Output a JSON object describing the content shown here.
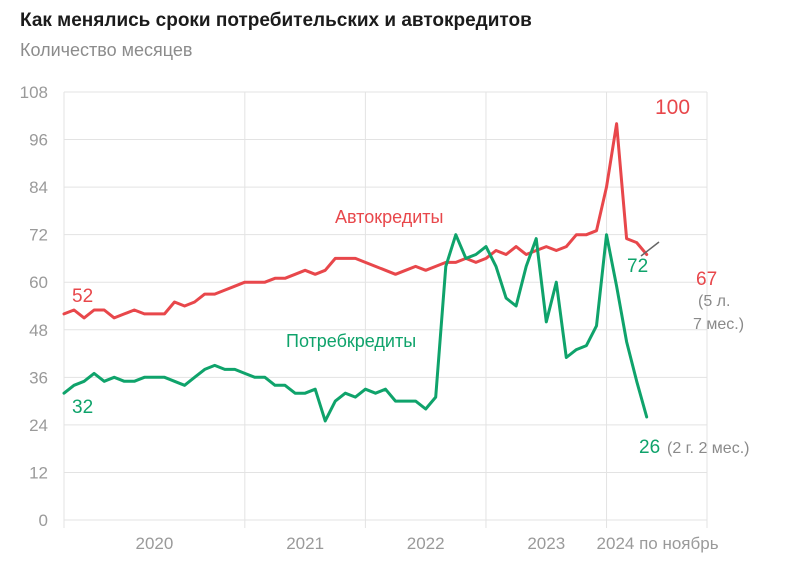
{
  "title": "Как менялись сроки потребительских и автокредитов",
  "subtitle": "Количество месяцев",
  "colors": {
    "auto": "#e8474b",
    "consumer": "#0fa36b",
    "grid": "#e3e3e3",
    "axis_text": "#9a9a9a",
    "note": "#8a8a8a"
  },
  "chart_data": {
    "type": "line",
    "title": "Как менялись сроки потребительских и автокредитов",
    "subtitle": "Количество месяцев",
    "ylim": [
      0,
      108
    ],
    "yticks": [
      0,
      12,
      24,
      36,
      48,
      60,
      72,
      84,
      96,
      108
    ],
    "x_start": "2019-07",
    "x_end": "2024-11",
    "year_ticks": [
      {
        "label": "2020",
        "start": "2020-01"
      },
      {
        "label": "2021",
        "start": "2021-01"
      },
      {
        "label": "2022",
        "start": "2022-01"
      },
      {
        "label": "2023",
        "start": "2023-01"
      },
      {
        "label": "2024 по ноябрь",
        "start": "2024-01"
      }
    ],
    "grid": true,
    "series": [
      {
        "name": "Автокредиты",
        "color": "#e8474b",
        "points": [
          [
            "2019-07",
            52
          ],
          [
            "2019-08",
            53
          ],
          [
            "2019-09",
            51
          ],
          [
            "2019-10",
            53
          ],
          [
            "2019-11",
            53
          ],
          [
            "2019-12",
            51
          ],
          [
            "2020-01",
            52
          ],
          [
            "2020-02",
            53
          ],
          [
            "2020-03",
            52
          ],
          [
            "2020-04",
            52
          ],
          [
            "2020-05",
            52
          ],
          [
            "2020-06",
            55
          ],
          [
            "2020-07",
            54
          ],
          [
            "2020-08",
            55
          ],
          [
            "2020-09",
            57
          ],
          [
            "2020-10",
            57
          ],
          [
            "2020-11",
            58
          ],
          [
            "2020-12",
            59
          ],
          [
            "2021-01",
            60
          ],
          [
            "2021-02",
            60
          ],
          [
            "2021-03",
            60
          ],
          [
            "2021-04",
            61
          ],
          [
            "2021-05",
            61
          ],
          [
            "2021-06",
            62
          ],
          [
            "2021-07",
            63
          ],
          [
            "2021-08",
            62
          ],
          [
            "2021-09",
            63
          ],
          [
            "2021-10",
            66
          ],
          [
            "2021-11",
            66
          ],
          [
            "2021-12",
            66
          ],
          [
            "2022-01",
            65
          ],
          [
            "2022-02",
            64
          ],
          [
            "2022-03",
            63
          ],
          [
            "2022-04",
            62
          ],
          [
            "2022-05",
            63
          ],
          [
            "2022-06",
            64
          ],
          [
            "2022-07",
            63
          ],
          [
            "2022-08",
            64
          ],
          [
            "2022-09",
            65
          ],
          [
            "2022-10",
            65
          ],
          [
            "2022-11",
            66
          ],
          [
            "2022-12",
            65
          ],
          [
            "2023-01",
            66
          ],
          [
            "2023-02",
            68
          ],
          [
            "2023-03",
            67
          ],
          [
            "2023-04",
            69
          ],
          [
            "2023-05",
            67
          ],
          [
            "2023-06",
            68
          ],
          [
            "2023-07",
            69
          ],
          [
            "2023-08",
            68
          ],
          [
            "2023-09",
            69
          ],
          [
            "2023-10",
            72
          ],
          [
            "2023-11",
            72
          ],
          [
            "2023-12",
            73
          ],
          [
            "2024-01",
            84
          ],
          [
            "2024-02",
            100
          ],
          [
            "2024-03",
            71
          ],
          [
            "2024-04",
            70
          ],
          [
            "2024-05",
            67
          ]
        ]
      },
      {
        "name": "Потребкредиты",
        "color": "#0fa36b",
        "points": [
          [
            "2019-07",
            32
          ],
          [
            "2019-08",
            34
          ],
          [
            "2019-09",
            35
          ],
          [
            "2019-10",
            37
          ],
          [
            "2019-11",
            35
          ],
          [
            "2019-12",
            36
          ],
          [
            "2020-01",
            35
          ],
          [
            "2020-02",
            35
          ],
          [
            "2020-03",
            36
          ],
          [
            "2020-04",
            36
          ],
          [
            "2020-05",
            36
          ],
          [
            "2020-06",
            35
          ],
          [
            "2020-07",
            34
          ],
          [
            "2020-08",
            36
          ],
          [
            "2020-09",
            38
          ],
          [
            "2020-10",
            39
          ],
          [
            "2020-11",
            38
          ],
          [
            "2020-12",
            38
          ],
          [
            "2021-01",
            37
          ],
          [
            "2021-02",
            36
          ],
          [
            "2021-03",
            36
          ],
          [
            "2021-04",
            34
          ],
          [
            "2021-05",
            34
          ],
          [
            "2021-06",
            32
          ],
          [
            "2021-07",
            32
          ],
          [
            "2021-08",
            33
          ],
          [
            "2021-09",
            25
          ],
          [
            "2021-10",
            30
          ],
          [
            "2021-11",
            32
          ],
          [
            "2021-12",
            31
          ],
          [
            "2022-01",
            33
          ],
          [
            "2022-02",
            32
          ],
          [
            "2022-03",
            33
          ],
          [
            "2022-04",
            30
          ],
          [
            "2022-05",
            30
          ],
          [
            "2022-06",
            30
          ],
          [
            "2022-07",
            28
          ],
          [
            "2022-08",
            31
          ],
          [
            "2022-09",
            64
          ],
          [
            "2022-10",
            72
          ],
          [
            "2022-11",
            66
          ],
          [
            "2022-12",
            67
          ],
          [
            "2023-01",
            69
          ],
          [
            "2023-02",
            64
          ],
          [
            "2023-03",
            56
          ],
          [
            "2023-04",
            54
          ],
          [
            "2023-05",
            64
          ],
          [
            "2023-06",
            71
          ],
          [
            "2023-07",
            50
          ],
          [
            "2023-08",
            60
          ],
          [
            "2023-09",
            41
          ],
          [
            "2023-10",
            43
          ],
          [
            "2023-11",
            44
          ],
          [
            "2023-12",
            49
          ],
          [
            "2024-01",
            72
          ],
          [
            "2024-02",
            59
          ],
          [
            "2024-03",
            45
          ],
          [
            "2024-04",
            35
          ],
          [
            "2024-05",
            26
          ]
        ]
      }
    ],
    "annotations": {
      "auto_start": "52",
      "auto_peak": "100",
      "auto_end": "67",
      "auto_end_note_1": "(5 л.",
      "auto_end_note_2": "7 мес.)",
      "auto_name": "Автокредиты",
      "consumer_start": "32",
      "consumer_peak": "72",
      "consumer_end": "26",
      "consumer_end_note": "(2 г. 2 мес.)",
      "consumer_name": "Потребкредиты"
    }
  }
}
